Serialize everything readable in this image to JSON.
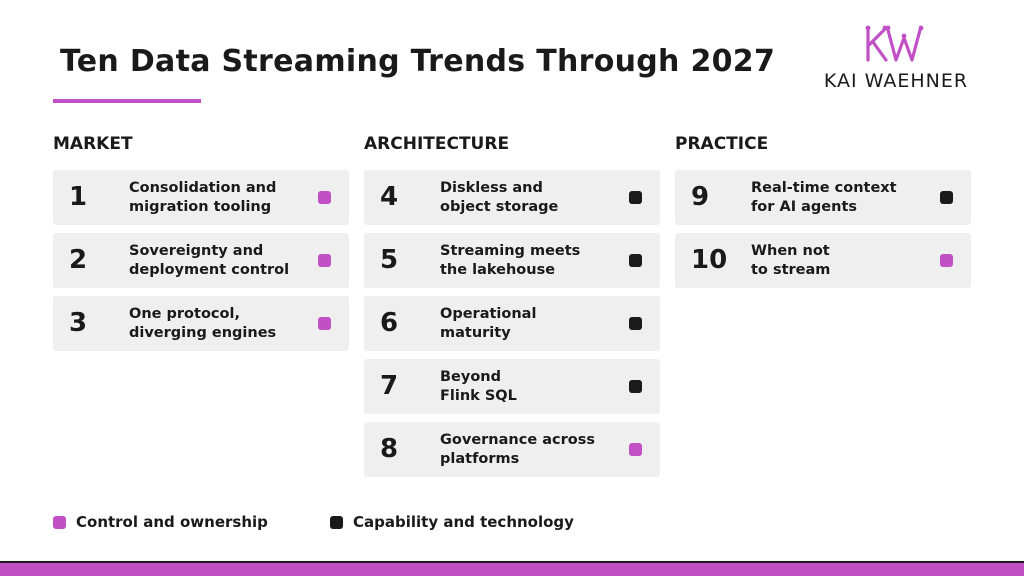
{
  "header": {
    "title": "Ten Data Streaming Trends Through 2027",
    "logo_text": "KAI WAEHNER"
  },
  "colors": {
    "accent": "#c150c6",
    "dark": "#1a1a1a",
    "card_bg": "#efefef"
  },
  "columns": [
    {
      "title": "MARKET",
      "items": [
        {
          "num": "1",
          "line1": "Consolidation and",
          "line2": "migration tooling",
          "category": "control"
        },
        {
          "num": "2",
          "line1": "Sovereignty and",
          "line2": "deployment control",
          "category": "control"
        },
        {
          "num": "3",
          "line1": "One protocol,",
          "line2": "diverging engines",
          "category": "control"
        }
      ]
    },
    {
      "title": "ARCHITECTURE",
      "items": [
        {
          "num": "4",
          "line1": "Diskless and",
          "line2": "object storage",
          "category": "capability"
        },
        {
          "num": "5",
          "line1": "Streaming meets",
          "line2": "the lakehouse",
          "category": "capability"
        },
        {
          "num": "6",
          "line1": "Operational",
          "line2": "maturity",
          "category": "capability"
        },
        {
          "num": "7",
          "line1": "Beyond",
          "line2": "Flink SQL",
          "category": "capability"
        },
        {
          "num": "8",
          "line1": "Governance across",
          "line2": "platforms",
          "category": "control"
        }
      ]
    },
    {
      "title": "PRACTICE",
      "items": [
        {
          "num": "9",
          "line1": "Real-time context",
          "line2": "for AI agents",
          "category": "capability"
        },
        {
          "num": "10",
          "line1": "When not",
          "line2": "to stream",
          "category": "control"
        }
      ]
    }
  ],
  "legend": {
    "control_label": "Control and ownership",
    "capability_label": "Capability and technology"
  }
}
